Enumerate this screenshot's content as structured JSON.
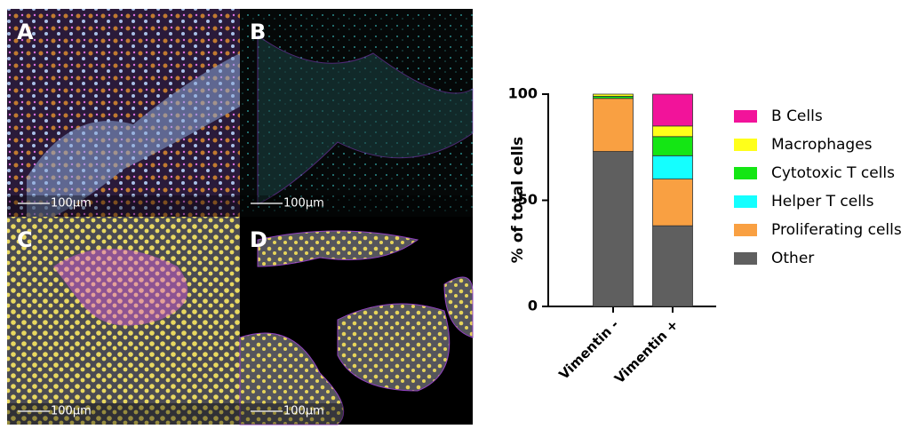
{
  "panels": [
    {
      "label": "A",
      "scale": "100µm"
    },
    {
      "label": "B",
      "scale": "100µm"
    },
    {
      "label": "C",
      "scale": "100µm"
    },
    {
      "label": "D",
      "scale": "100µm"
    }
  ],
  "chart_data": {
    "type": "stacked_bar",
    "y_label": "% of total cells",
    "categories": [
      "Vimentin -",
      "Vimentin +"
    ],
    "series": [
      {
        "name": "B Cells",
        "color": "#f2139a",
        "values": [
          0,
          15
        ]
      },
      {
        "name": "Macrophages",
        "color": "#ffff1a",
        "values": [
          1,
          5
        ]
      },
      {
        "name": "Cytotoxic T cells",
        "color": "#14e614",
        "values": [
          1,
          9
        ]
      },
      {
        "name": "Helper T cells",
        "color": "#14ffff",
        "values": [
          0,
          11
        ]
      },
      {
        "name": "Proliferating cells",
        "color": "#f9a042",
        "values": [
          25,
          22
        ]
      },
      {
        "name": "Other",
        "color": "#5f5f5f",
        "values": [
          73,
          38
        ]
      }
    ],
    "ylim": [
      0,
      100
    ],
    "yticks": [
      0,
      50,
      100
    ]
  }
}
